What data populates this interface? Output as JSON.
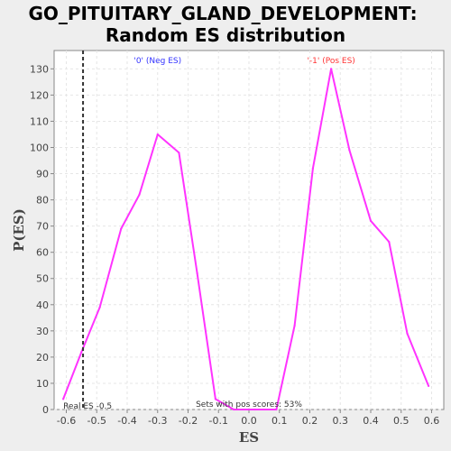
{
  "chart_data": {
    "type": "line",
    "title_line1": "GO_PITUITARY_GLAND_DEVELOPMENT:",
    "title_line2": "Random ES distribution",
    "xlabel": "ES",
    "ylabel": "P(ES)",
    "xlim": [
      -0.64,
      0.64
    ],
    "ylim": [
      0,
      137
    ],
    "xticks": [
      -0.6,
      -0.5,
      -0.4,
      -0.3,
      -0.2,
      -0.1,
      0.0,
      0.1,
      0.2,
      0.3,
      0.4,
      0.5,
      0.6
    ],
    "xtick_labels": [
      "-0.6",
      "-0.5",
      "-0.4",
      "-0.3",
      "-0.2",
      "-0.1",
      "0.0",
      "0.1",
      "0.2",
      "0.3",
      "0.4",
      "0.5",
      "0.6"
    ],
    "yticks": [
      0,
      10,
      20,
      30,
      40,
      50,
      60,
      70,
      80,
      90,
      100,
      110,
      120,
      130
    ],
    "ytick_labels": [
      "0",
      "10",
      "20",
      "30",
      "40",
      "50",
      "60",
      "70",
      "80",
      "90",
      "100",
      "110",
      "120",
      "130"
    ],
    "grid": true,
    "series": [
      {
        "color": "#ff33ff",
        "x": [
          -0.61,
          -0.55,
          -0.49,
          -0.42,
          -0.36,
          -0.3,
          -0.23,
          -0.17,
          -0.11,
          -0.05,
          0.02,
          0.09,
          0.15,
          0.21,
          0.27,
          0.33,
          0.4,
          0.46,
          0.52,
          0.59
        ],
        "y": [
          4,
          22,
          39,
          69,
          82,
          105,
          98,
          52,
          4,
          0,
          0,
          0,
          32,
          92,
          130,
          99,
          72,
          64,
          29,
          9
        ]
      }
    ],
    "real_es": -0.545,
    "real_es_color": "#333333",
    "annotations": {
      "neg_label": "'0' (Neg ES)",
      "neg_color": "#3333ff",
      "pos_label": "'-1' (Pos ES)",
      "pos_color": "#ff3333",
      "real_es_label": "Real ES -0.5",
      "sets_label": "Sets with pos scores: 53%"
    }
  }
}
